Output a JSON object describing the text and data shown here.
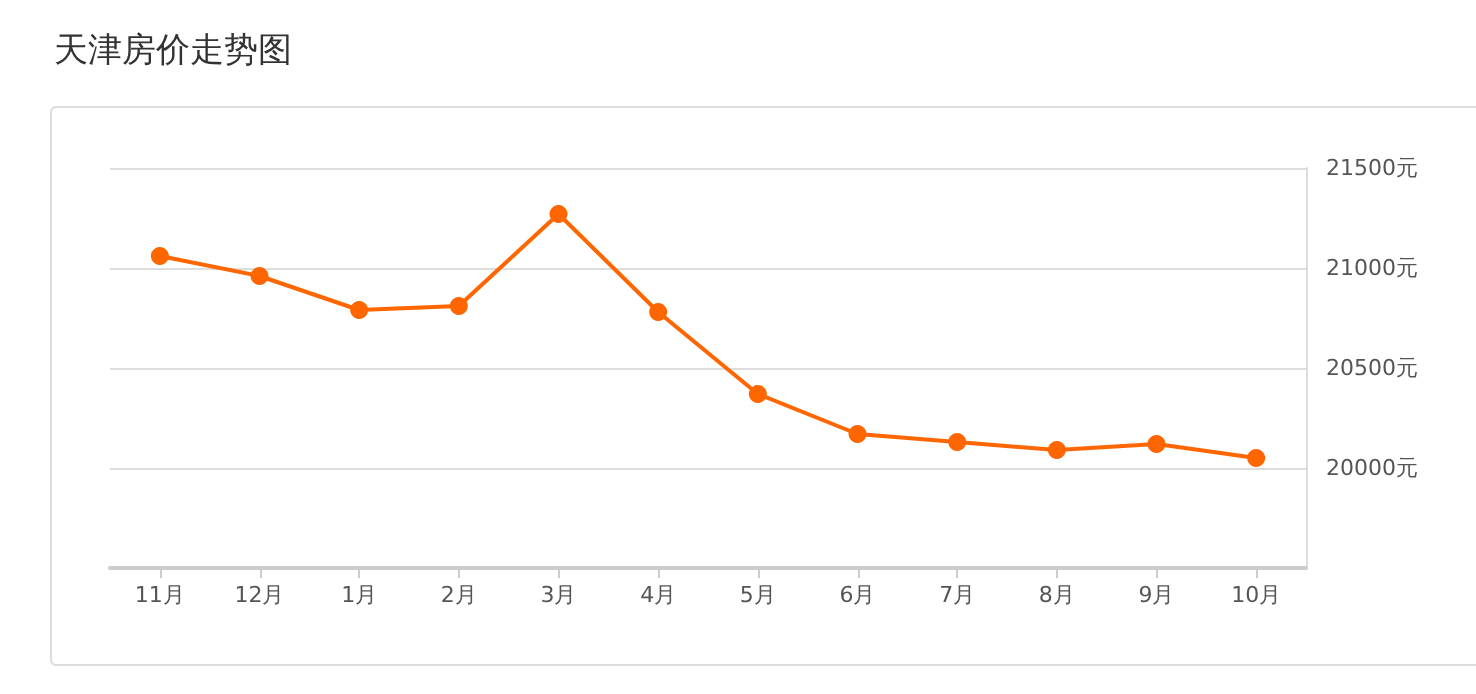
{
  "chart_data": {
    "type": "line",
    "title": "天津房价走势图",
    "categories": [
      "11月",
      "12月",
      "1月",
      "2月",
      "3月",
      "4月",
      "5月",
      "6月",
      "7月",
      "8月",
      "9月",
      "10月"
    ],
    "series": [
      {
        "color": "#ff6600",
        "values": [
          21060,
          20960,
          20790,
          20810,
          21270,
          20780,
          20370,
          20170,
          20130,
          20090,
          20120,
          20050
        ]
      }
    ],
    "ylim": [
      19500,
      21500
    ],
    "yticks": [
      {
        "value": 20000,
        "label": "20000元"
      },
      {
        "value": 20500,
        "label": "20500元"
      },
      {
        "value": 21000,
        "label": "21000元"
      },
      {
        "value": 21500,
        "label": "21500元"
      }
    ],
    "grid": "y",
    "marker": "circle",
    "line_style": "solid"
  }
}
